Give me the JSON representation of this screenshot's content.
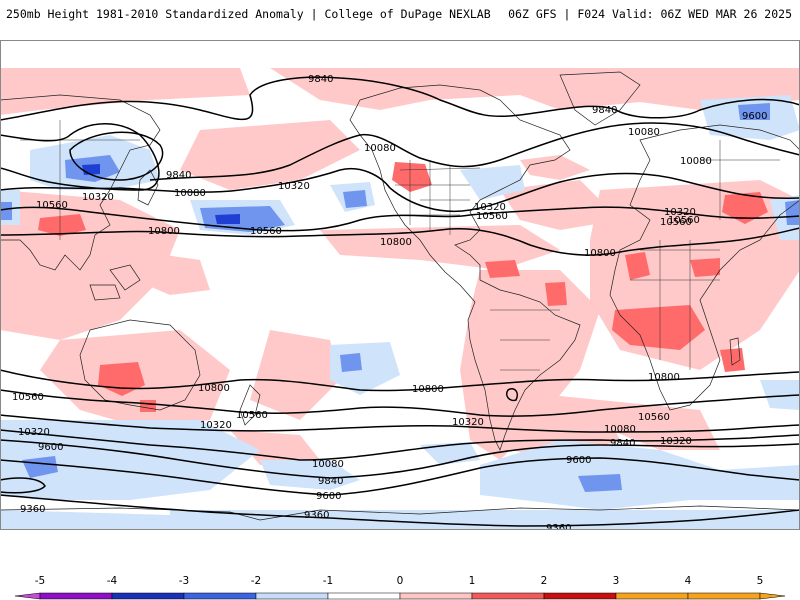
{
  "header": {
    "left": "250mb Height 1981-2010 Standardized Anomaly | College of DuPage NEXLAB",
    "right": "06Z GFS | F024 Valid: 06Z WED MAR 26 2025"
  },
  "colors": {
    "pos1": "#ffc9c9",
    "pos2": "#ff6b6b",
    "neg1": "#cfe3fb",
    "neg2": "#6f95ef",
    "neg3": "#1e3fd1",
    "contour": "#000000"
  },
  "contour_labels": [
    {
      "text": "9840"
    },
    {
      "text": "9840"
    },
    {
      "text": "10080"
    },
    {
      "text": "9600"
    },
    {
      "text": "10080"
    },
    {
      "text": "9840"
    },
    {
      "text": "10320"
    },
    {
      "text": "10080"
    },
    {
      "text": "10320"
    },
    {
      "text": "10560"
    },
    {
      "text": "10560"
    },
    {
      "text": "10320"
    },
    {
      "text": "10560"
    },
    {
      "text": "10320"
    },
    {
      "text": "10560"
    },
    {
      "text": "10800"
    },
    {
      "text": "10800"
    },
    {
      "text": "10800"
    },
    {
      "text": "10560"
    },
    {
      "text": "10800"
    },
    {
      "text": "10800"
    },
    {
      "text": "10800"
    },
    {
      "text": "10560"
    },
    {
      "text": "10560"
    },
    {
      "text": "10320"
    },
    {
      "text": "10320"
    },
    {
      "text": "10080"
    },
    {
      "text": "9840"
    },
    {
      "text": "10320"
    },
    {
      "text": "10080"
    },
    {
      "text": "9840"
    },
    {
      "text": "9600"
    },
    {
      "text": "9600"
    },
    {
      "text": "9600"
    },
    {
      "text": "9360"
    },
    {
      "text": "9360"
    },
    {
      "text": "9360"
    },
    {
      "text": "10320"
    },
    {
      "text": "10560"
    },
    {
      "text": "10080"
    }
  ],
  "colorbar": {
    "ticks": [
      "-5",
      "-4",
      "-3",
      "-2",
      "-1",
      "0",
      "1",
      "2",
      "3",
      "4",
      "5"
    ],
    "bin_colors": [
      "#c54bd9",
      "#8f0fc8",
      "#1c2fb8",
      "#3c63e0",
      "#c7dcf8",
      "#ffffff",
      "#ffc4c4",
      "#f25a5a",
      "#c70f0f",
      "#f7a21c",
      "#f7a21c"
    ]
  }
}
